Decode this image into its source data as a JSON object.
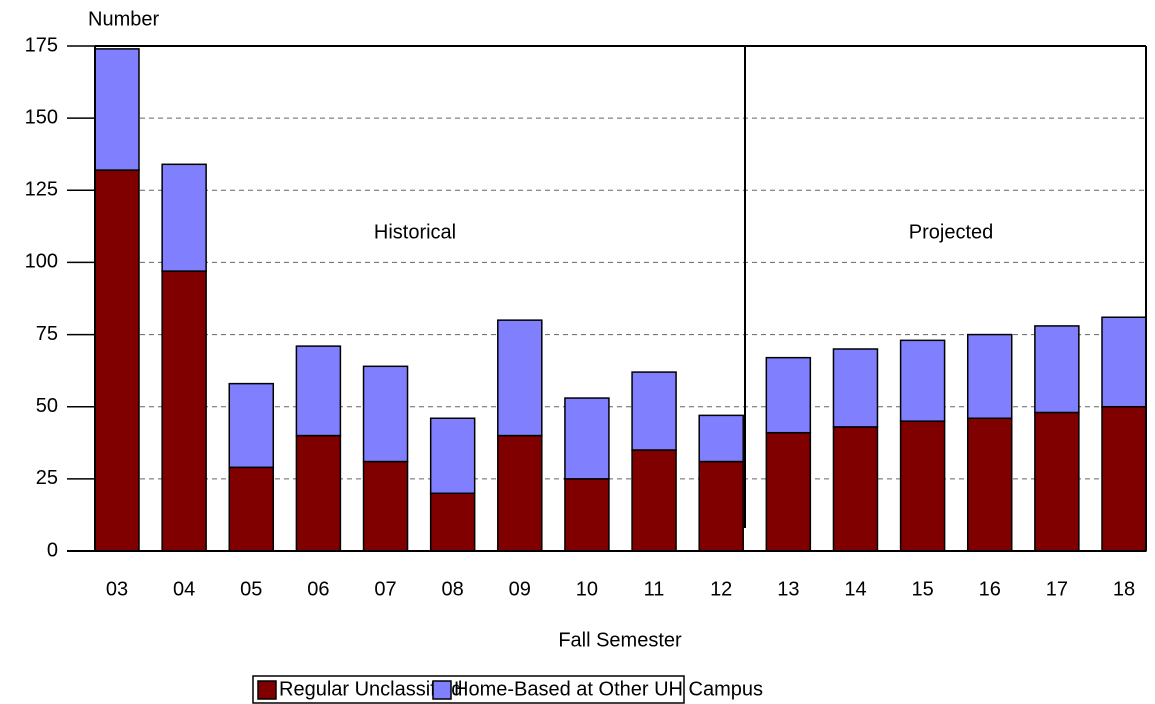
{
  "chart_data": {
    "type": "stacked_bar",
    "y_label": "Number",
    "x_label": "Fall Semester",
    "annotations": [
      "Historical",
      "Projected"
    ],
    "categories": [
      "03",
      "04",
      "05",
      "06",
      "07",
      "08",
      "09",
      "10",
      "11",
      "12",
      "13",
      "14",
      "15",
      "16",
      "17",
      "18"
    ],
    "series": [
      {
        "name": "Regular Unclassified",
        "color": "#800000",
        "values": [
          132,
          97,
          29,
          40,
          31,
          20,
          40,
          25,
          35,
          31,
          41,
          43,
          45,
          46,
          48,
          50
        ]
      },
      {
        "name": "Home-Based at Other UH Campus",
        "color": "#8080ff",
        "values": [
          42,
          37,
          29,
          31,
          33,
          26,
          40,
          28,
          27,
          16,
          26,
          27,
          28,
          29,
          30,
          31
        ]
      }
    ],
    "ylim": [
      0,
      175
    ],
    "yticks": [
      0,
      25,
      50,
      75,
      100,
      125,
      150,
      175
    ],
    "grid": true,
    "legend": "bottom"
  }
}
